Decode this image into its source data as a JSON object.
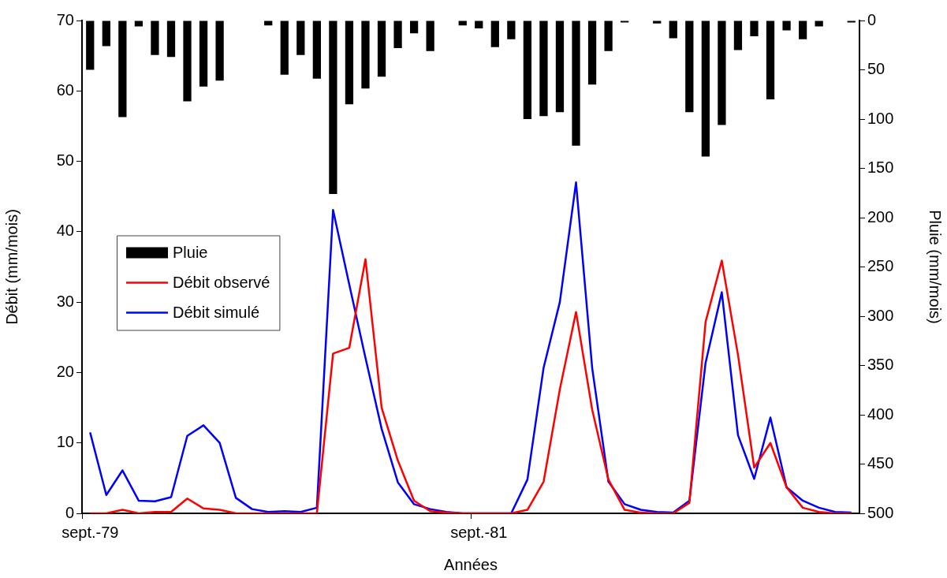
{
  "chart_data": {
    "type": "line",
    "xlabel": "Années",
    "ylabel": "Débit (mm/mois)",
    "y2label": "Pluie (mm/mois)",
    "categories": [
      "sept.-79",
      null,
      null,
      null,
      null,
      null,
      null,
      null,
      null,
      null,
      null,
      null,
      null,
      null,
      null,
      null,
      null,
      null,
      null,
      null,
      null,
      null,
      null,
      null,
      "sept.-81",
      null,
      null,
      null,
      null,
      null,
      null,
      null,
      null,
      null,
      null,
      null,
      null,
      null,
      null,
      null,
      null,
      null,
      null,
      null,
      null,
      null,
      null,
      null
    ],
    "series": [
      {
        "name": "Pluie",
        "type": "bar",
        "axis": "y2",
        "color": "#000000",
        "values": [
          50,
          26,
          98,
          6,
          35,
          37,
          82,
          67,
          61,
          null,
          0,
          5,
          55,
          35,
          59,
          176,
          85,
          69,
          57,
          28,
          13,
          31,
          0,
          5,
          8,
          27,
          19,
          100,
          97,
          93,
          127,
          65,
          31,
          2,
          0,
          3,
          18,
          93,
          138,
          106,
          30,
          16,
          80,
          10,
          19,
          6,
          null,
          2
        ]
      },
      {
        "name": "Débit observé",
        "color": "#ff0000",
        "values": [
          0,
          0,
          0.5,
          0,
          0.2,
          0.2,
          2.1,
          0.7,
          0.5,
          0,
          0,
          0,
          0,
          0,
          0,
          22.7,
          23.5,
          36.1,
          15.0,
          7.5,
          1.8,
          0.3,
          0.1,
          0,
          0,
          0,
          0,
          0.5,
          4.5,
          17.6,
          28.6,
          14.7,
          4.8,
          0.5,
          0.1,
          0,
          0,
          1.5,
          27.2,
          35.9,
          22.5,
          6.5,
          10.0,
          3.7,
          0.8,
          0.2,
          0,
          0
        ]
      },
      {
        "name": "Débit simulé",
        "color": "#0000ff",
        "values": [
          11.5,
          2.6,
          6.1,
          1.8,
          1.7,
          2.3,
          11.0,
          12.5,
          10.0,
          2.2,
          0.6,
          0.2,
          0.3,
          0.2,
          0.8,
          43.1,
          32.5,
          22.1,
          12.0,
          4.4,
          1.3,
          0.6,
          0.2,
          0,
          0,
          0,
          0,
          4.8,
          20.7,
          30.0,
          47.0,
          20.6,
          4.5,
          1.3,
          0.5,
          0.2,
          0.1,
          1.8,
          21.4,
          31.4,
          11.1,
          4.9,
          13.6,
          3.7,
          1.8,
          0.8,
          0.2,
          0.1
        ]
      }
    ],
    "ylim": [
      0,
      70
    ],
    "yticks": [
      0,
      10,
      20,
      30,
      40,
      50,
      60,
      70
    ],
    "y2lim": [
      500,
      0
    ],
    "y2ticks": [
      0,
      50,
      100,
      150,
      200,
      250,
      300,
      350,
      400,
      450,
      500
    ],
    "grid": false,
    "legend": "center left",
    "marker": "none",
    "line_style": "solid"
  }
}
